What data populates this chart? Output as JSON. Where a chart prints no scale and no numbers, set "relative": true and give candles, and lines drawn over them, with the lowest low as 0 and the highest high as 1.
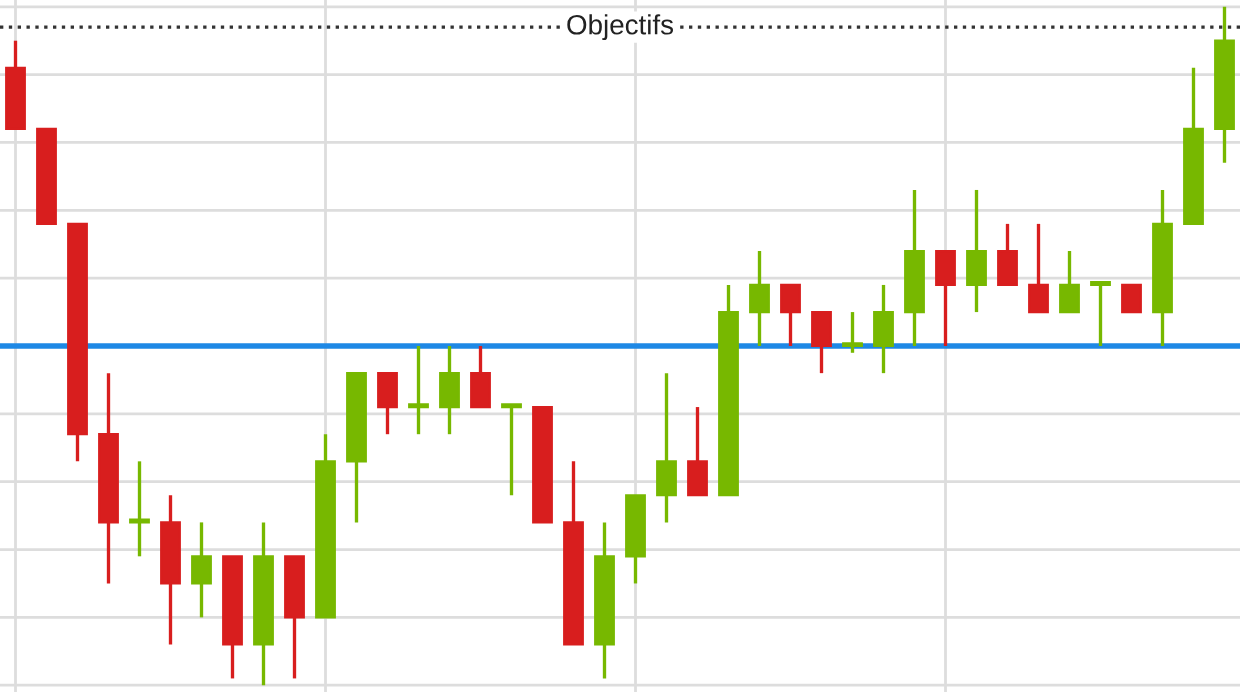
{
  "chart_data": {
    "type": "candlestick",
    "relative": true,
    "grid": true,
    "categories": [
      null,
      null,
      null,
      null,
      null,
      null,
      null,
      null,
      null,
      null,
      null,
      null,
      null,
      null,
      null,
      null,
      null,
      null,
      null,
      null,
      null,
      null,
      null,
      null,
      null,
      null,
      null,
      null,
      null,
      null,
      null,
      null,
      null,
      null,
      null,
      null,
      null,
      null,
      null,
      null
    ],
    "ohlc": [
      [
        0.91,
        0.95,
        0.82,
        0.82
      ],
      [
        0.82,
        0.82,
        0.68,
        0.68
      ],
      [
        0.68,
        0.68,
        0.33,
        0.37
      ],
      [
        0.37,
        0.46,
        0.15,
        0.24
      ],
      [
        0.24,
        0.33,
        0.19,
        0.24
      ],
      [
        0.24,
        0.28,
        0.06,
        0.15
      ],
      [
        0.15,
        0.24,
        0.1,
        0.19
      ],
      [
        0.19,
        0.19,
        0.01,
        0.06
      ],
      [
        0.06,
        0.24,
        0,
        0.19
      ],
      [
        0.19,
        0.19,
        0.01,
        0.1
      ],
      [
        0.1,
        0.37,
        0.1,
        0.33
      ],
      [
        0.33,
        0.46,
        0.24,
        0.46
      ],
      [
        0.46,
        0.46,
        0.37,
        0.41
      ],
      [
        0.41,
        0.5,
        0.37,
        0.41
      ],
      [
        0.41,
        0.5,
        0.37,
        0.46
      ],
      [
        0.46,
        0.5,
        0.41,
        0.41
      ],
      [
        0.41,
        0.41,
        0.28,
        0.41
      ],
      [
        0.41,
        0.41,
        0.24,
        0.24
      ],
      [
        0.24,
        0.33,
        0.06,
        0.06
      ],
      [
        0.06,
        0.24,
        0.01,
        0.19
      ],
      [
        0.19,
        0.28,
        0.15,
        0.28
      ],
      [
        0.28,
        0.46,
        0.24,
        0.33
      ],
      [
        0.33,
        0.41,
        0.28,
        0.28
      ],
      [
        0.28,
        0.59,
        0.28,
        0.55
      ],
      [
        0.55,
        0.64,
        0.5,
        0.59
      ],
      [
        0.59,
        0.59,
        0.5,
        0.55
      ],
      [
        0.55,
        0.55,
        0.46,
        0.5
      ],
      [
        0.5,
        0.55,
        0.49,
        0.5
      ],
      [
        0.5,
        0.59,
        0.46,
        0.55
      ],
      [
        0.55,
        0.73,
        0.5,
        0.64
      ],
      [
        0.64,
        0.64,
        0.5,
        0.59
      ],
      [
        0.59,
        0.73,
        0.55,
        0.64
      ],
      [
        0.64,
        0.68,
        0.59,
        0.59
      ],
      [
        0.59,
        0.68,
        0.55,
        0.55
      ],
      [
        0.55,
        0.64,
        0.55,
        0.59
      ],
      [
        0.59,
        0.59,
        0.5,
        0.59
      ],
      [
        0.59,
        0.59,
        0.55,
        0.55
      ],
      [
        0.55,
        0.73,
        0.5,
        0.68
      ],
      [
        0.68,
        0.91,
        0.68,
        0.82
      ],
      [
        0.82,
        1,
        0.77,
        0.95
      ]
    ],
    "colors": [
      "#d81e1e",
      "#d81e1e",
      "#d81e1e",
      "#d81e1e",
      "#77b800",
      "#d81e1e",
      "#77b800",
      "#d81e1e",
      "#77b800",
      "#d81e1e",
      "#77b800",
      "#77b800",
      "#d81e1e",
      "#77b800",
      "#77b800",
      "#d81e1e",
      "#77b800",
      "#d81e1e",
      "#d81e1e",
      "#77b800",
      "#77b800",
      "#77b800",
      "#d81e1e",
      "#77b800",
      "#77b800",
      "#d81e1e",
      "#d81e1e",
      "#77b800",
      "#77b800",
      "#77b800",
      "#d81e1e",
      "#77b800",
      "#d81e1e",
      "#d81e1e",
      "#77b800",
      "#77b800",
      "#d81e1e",
      "#77b800",
      "#77b800",
      "#77b800"
    ],
    "ref_lines": [
      {
        "axis": "y",
        "value": 0.5,
        "color": "#1e88e5",
        "line_style": "solid"
      },
      {
        "axis": "y",
        "value": 0.97,
        "label": "Objectifs",
        "color": "#333333",
        "line_style": "dotted"
      }
    ]
  }
}
